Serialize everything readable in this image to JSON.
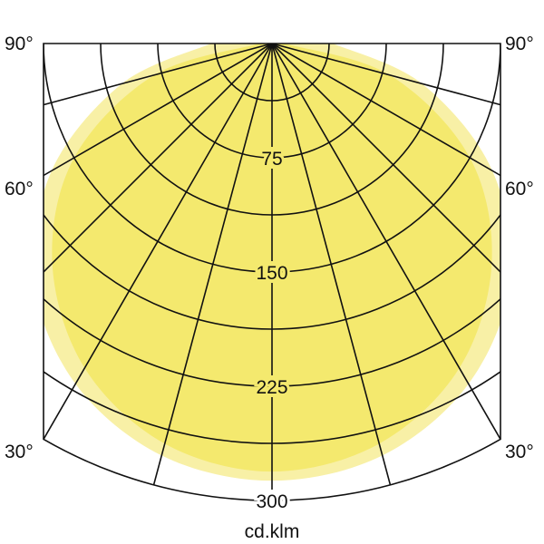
{
  "chart_data": {
    "type": "polar",
    "unit_label": "cd.klm",
    "radial_ticks": [
      75,
      150,
      225,
      300
    ],
    "radial_max": 300,
    "radial_grid_step": 37.5,
    "angle_labels": [
      "90°",
      "60°",
      "30°"
    ],
    "angle_grid_step_deg": 15,
    "grid": true,
    "angles_deg": [
      0,
      15,
      30,
      45,
      60,
      75,
      90
    ],
    "series": [
      {
        "values": [
          287,
          280,
          258,
          221,
          167,
          102,
          40
        ],
        "color": "#f8f0a6"
      },
      {
        "values": [
          281,
          272,
          246,
          204,
          150,
          80,
          8
        ],
        "color": "#f4e96e"
      }
    ]
  }
}
